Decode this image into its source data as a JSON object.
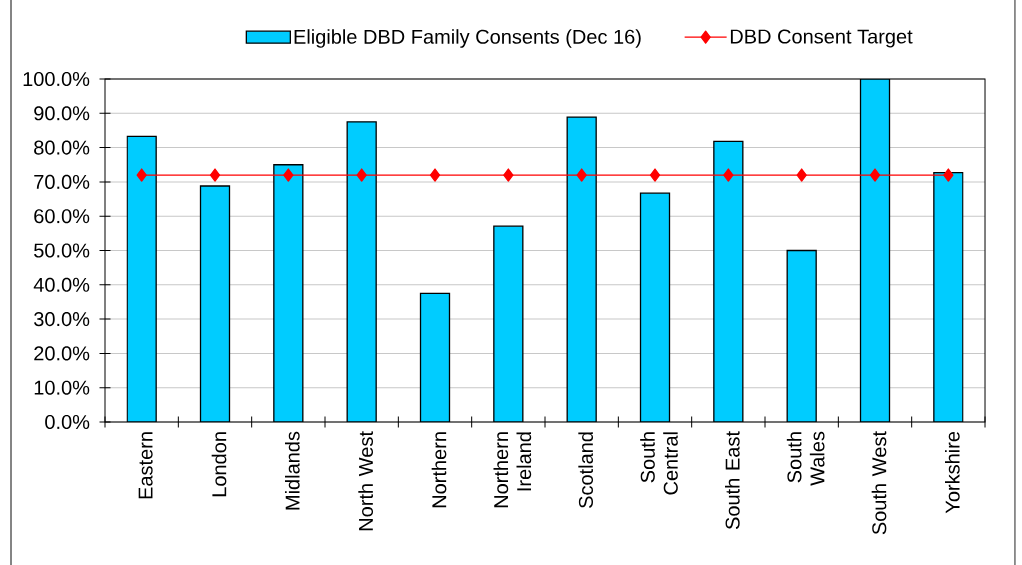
{
  "chart_data": {
    "type": "bar",
    "categories": [
      "Eastern",
      "London",
      "Midlands",
      "North West",
      "Northern",
      "Northern Ireland",
      "Scotland",
      "South Central",
      "South East",
      "South Wales",
      "South West",
      "Yorkshire"
    ],
    "series": [
      {
        "name": "Eligible DBD Family Consents (Dec 16)",
        "color": "#00ccff",
        "values": [
          83.3,
          68.8,
          75.0,
          87.5,
          37.5,
          57.1,
          88.9,
          66.7,
          81.8,
          50.0,
          100.0,
          72.7
        ]
      },
      {
        "name": "DBD Consent Target",
        "type": "line",
        "color": "#ff0000",
        "marker": "diamond",
        "line_style": "solid",
        "values": [
          72,
          72,
          72,
          72,
          72,
          72,
          72,
          72,
          72,
          72,
          72,
          72
        ]
      }
    ],
    "ylim": [
      0,
      100
    ],
    "yticks": [
      {
        "value": 0,
        "label": "0.0%"
      },
      {
        "value": 10,
        "label": "10.0%"
      },
      {
        "value": 20,
        "label": "20.0%"
      },
      {
        "value": 30,
        "label": "30.0%"
      },
      {
        "value": 40,
        "label": "40.0%"
      },
      {
        "value": 50,
        "label": "50.0%"
      },
      {
        "value": 60,
        "label": "60.0%"
      },
      {
        "value": 70,
        "label": "70.0%"
      },
      {
        "value": 80,
        "label": "80.0%"
      },
      {
        "value": 90,
        "label": "90.0%"
      },
      {
        "value": 100,
        "label": "100.0%"
      }
    ],
    "grid": "y",
    "legend": "top"
  }
}
